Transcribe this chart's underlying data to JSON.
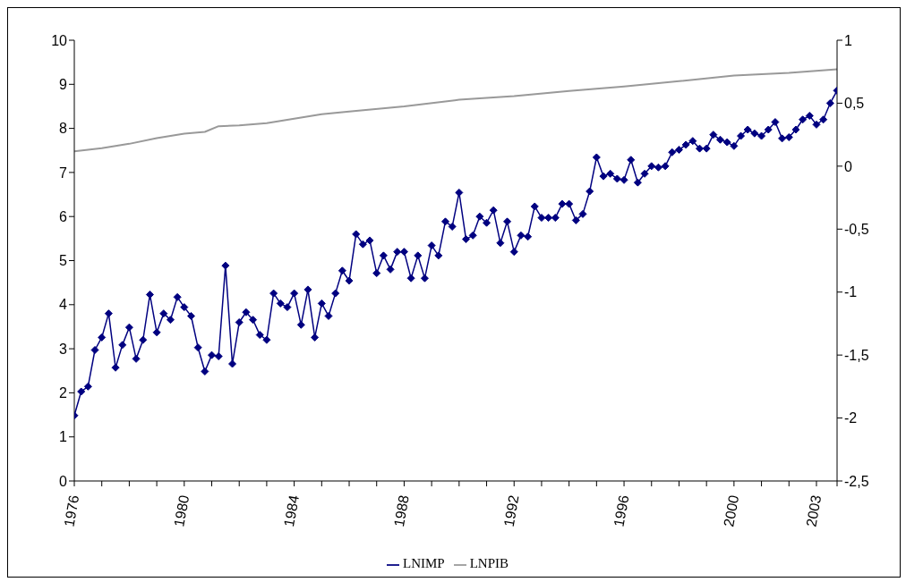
{
  "chart_data": {
    "type": "line",
    "x": [
      1976,
      1976.25,
      1976.5,
      1976.75,
      1977,
      1977.25,
      1977.5,
      1977.75,
      1978,
      1978.25,
      1978.5,
      1978.75,
      1979,
      1979.25,
      1979.5,
      1979.75,
      1980,
      1980.25,
      1980.5,
      1980.75,
      1981,
      1981.25,
      1981.5,
      1981.75,
      1982,
      1982.25,
      1982.5,
      1982.75,
      1983,
      1983.25,
      1983.5,
      1983.75,
      1984,
      1984.25,
      1984.5,
      1984.75,
      1985,
      1985.25,
      1985.5,
      1985.75,
      1986,
      1986.25,
      1986.5,
      1986.75,
      1987,
      1987.25,
      1987.5,
      1987.75,
      1988,
      1988.25,
      1988.5,
      1988.75,
      1989,
      1989.25,
      1989.5,
      1989.75,
      1990,
      1990.25,
      1990.5,
      1990.75,
      1991,
      1991.25,
      1991.5,
      1991.75,
      1992,
      1992.25,
      1992.5,
      1992.75,
      1993,
      1993.25,
      1993.5,
      1993.75,
      1994,
      1994.25,
      1994.5,
      1994.75,
      1995,
      1995.25,
      1995.5,
      1995.75,
      1996,
      1996.25,
      1996.5,
      1996.75,
      1997,
      1997.25,
      1997.5,
      1997.75,
      1998,
      1998.25,
      1998.5,
      1998.75,
      1999,
      1999.25,
      1999.5,
      1999.75,
      2000,
      2000.25,
      2000.5,
      2000.75,
      2001,
      2001.25,
      2001.5,
      2001.75,
      2002,
      2002.25,
      2002.5,
      2002.75,
      2003,
      2003.25,
      2003.5,
      2003.75
    ],
    "xlim": [
      1976,
      2003.75
    ],
    "xticks": [
      1976,
      {
        "value": 1977,
        "label": null
      },
      {
        "value": 1978,
        "label": null
      },
      {
        "value": 1979,
        "label": null
      },
      1980,
      {
        "value": 1981,
        "label": null
      },
      {
        "value": 1982,
        "label": null
      },
      {
        "value": 1983,
        "label": null
      },
      1984,
      {
        "value": 1985,
        "label": null
      },
      {
        "value": 1986,
        "label": null
      },
      {
        "value": 1987,
        "label": null
      },
      1988,
      {
        "value": 1989,
        "label": null
      },
      {
        "value": 1990,
        "label": null
      },
      {
        "value": 1991,
        "label": null
      },
      1992,
      {
        "value": 1993,
        "label": null
      },
      {
        "value": 1994,
        "label": null
      },
      {
        "value": 1995,
        "label": null
      },
      1996,
      {
        "value": 1997,
        "label": null
      },
      {
        "value": 1998,
        "label": null
      },
      {
        "value": 1999,
        "label": null
      },
      2000,
      {
        "value": 2001,
        "label": null
      },
      {
        "value": 2002,
        "label": null
      },
      2003,
      {
        "value": 2003.75,
        "label": null
      }
    ],
    "ylim": [
      0,
      10
    ],
    "yticks": [
      0,
      1,
      2,
      3,
      4,
      5,
      6,
      7,
      8,
      9,
      10
    ],
    "y2lim": [
      -2.5,
      1
    ],
    "y2ticks": [
      {
        "value": -2.5,
        "label": "-2,5"
      },
      -2,
      {
        "value": -1.5,
        "label": "-1,5"
      },
      -1,
      {
        "value": -0.5,
        "label": "-0,5"
      },
      0,
      {
        "value": 0.5,
        "label": "0,5"
      },
      1
    ],
    "series": [
      {
        "name": "LNPIB",
        "color": "#999999",
        "marker": "none",
        "x": [
          1976,
          1977,
          1978,
          1979,
          1980,
          1980.75,
          1981.25,
          1982,
          1983,
          1984,
          1985,
          1986,
          1988,
          1990,
          1992,
          1994,
          1996,
          1998,
          2000,
          2002,
          2003.75
        ],
        "values": [
          7.48,
          7.55,
          7.65,
          7.78,
          7.88,
          7.92,
          8.05,
          8.07,
          8.12,
          8.22,
          8.32,
          8.38,
          8.5,
          8.65,
          8.73,
          8.85,
          8.95,
          9.07,
          9.2,
          9.26,
          9.34
        ]
      },
      {
        "name": "LNIMP",
        "color": "#000080",
        "marker": "diamond",
        "axis": "y2",
        "values": [
          -1.98,
          -1.79,
          -1.75,
          -1.46,
          -1.36,
          -1.17,
          -1.6,
          -1.42,
          -1.28,
          -1.53,
          -1.38,
          -1.02,
          -1.32,
          -1.17,
          -1.22,
          -1.04,
          -1.12,
          -1.19,
          -1.44,
          -1.63,
          -1.5,
          -1.51,
          -0.79,
          -1.57,
          -1.24,
          -1.16,
          -1.22,
          -1.34,
          -1.38,
          -1.01,
          -1.09,
          -1.12,
          -1.01,
          -1.26,
          -0.98,
          -1.36,
          -1.09,
          -1.19,
          -1.01,
          -0.83,
          -0.91,
          -0.54,
          -0.62,
          -0.59,
          -0.85,
          -0.71,
          -0.82,
          -0.68,
          -0.68,
          -0.89,
          -0.71,
          -0.89,
          -0.63,
          -0.71,
          -0.44,
          -0.48,
          -0.21,
          -0.58,
          -0.55,
          -0.4,
          -0.45,
          -0.35,
          -0.61,
          -0.44,
          -0.68,
          -0.55,
          -0.56,
          -0.32,
          -0.41,
          -0.41,
          -0.41,
          -0.3,
          -0.3,
          -0.43,
          -0.38,
          -0.2,
          0.07,
          -0.08,
          -0.06,
          -0.1,
          -0.11,
          0.05,
          -0.13,
          -0.06,
          0,
          -0.01,
          0,
          0.11,
          0.13,
          0.17,
          0.2,
          0.14,
          0.14,
          0.25,
          0.21,
          0.19,
          0.16,
          0.24,
          0.29,
          0.26,
          0.24,
          0.29,
          0.35,
          0.22,
          0.23,
          0.29,
          0.37,
          0.4,
          0.33,
          0.37,
          0.5,
          0.6
        ]
      }
    ],
    "legend": "bottom",
    "grid": false
  }
}
